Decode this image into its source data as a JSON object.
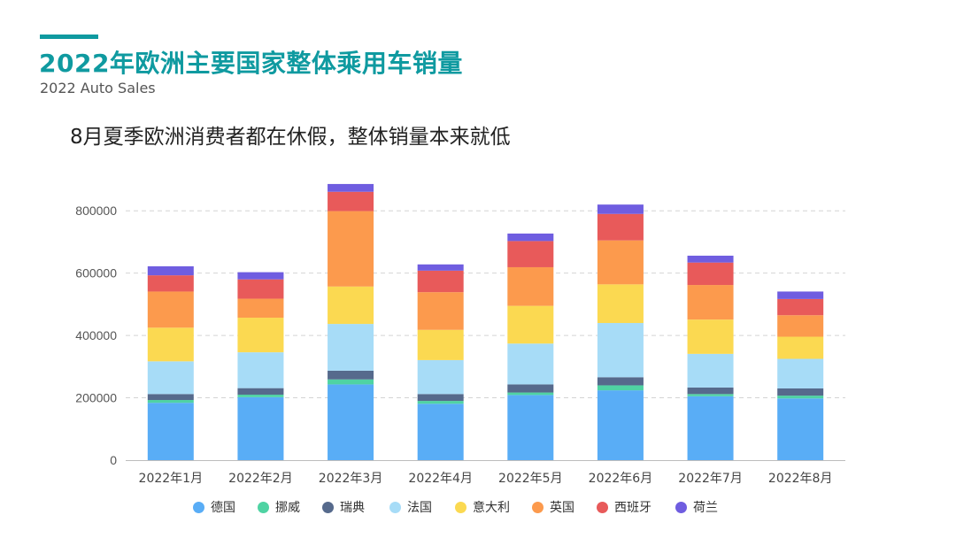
{
  "header": {
    "title": "2022年欧洲主要国家整体乘用车销量",
    "subtitle": "2022 Auto Sales",
    "headline": "8月夏季欧洲消费者都在休假，整体销量本来就低"
  },
  "chart_data": {
    "type": "bar",
    "stacked": true,
    "categories": [
      "2022年1月",
      "2022年2月",
      "2022年3月",
      "2022年4月",
      "2022年5月",
      "2022年6月",
      "2022年7月",
      "2022年8月"
    ],
    "ylim": [
      0,
      900000
    ],
    "yticks": [
      0,
      200000,
      400000,
      600000,
      800000
    ],
    "grid": true,
    "legend_position": "bottom",
    "series": [
      {
        "name": "德国",
        "color": "#59adf6",
        "values": [
          184000,
          202000,
          243000,
          181000,
          209000,
          224000,
          205000,
          198000
        ]
      },
      {
        "name": "挪威",
        "color": "#4fd3a3",
        "values": [
          9000,
          8000,
          16000,
          9000,
          8000,
          16000,
          7000,
          9000
        ]
      },
      {
        "name": "瑞典",
        "color": "#566a8c",
        "values": [
          19000,
          21000,
          28000,
          22000,
          26000,
          26000,
          21000,
          23000
        ]
      },
      {
        "name": "法国",
        "color": "#a7dcf7",
        "values": [
          105000,
          115000,
          150000,
          109000,
          131000,
          174000,
          108000,
          95000
        ]
      },
      {
        "name": "意大利",
        "color": "#fbd951",
        "values": [
          108000,
          111000,
          120000,
          97000,
          121000,
          124000,
          110000,
          71000
        ]
      },
      {
        "name": "英国",
        "color": "#fc9a4d",
        "values": [
          116000,
          61000,
          242000,
          121000,
          124000,
          141000,
          111000,
          69000
        ]
      },
      {
        "name": "西班牙",
        "color": "#e85a5a",
        "values": [
          52000,
          62000,
          62000,
          69000,
          84000,
          85000,
          72000,
          52000
        ]
      },
      {
        "name": "荷兰",
        "color": "#6f5de0",
        "values": [
          29000,
          23000,
          25000,
          20000,
          24000,
          30000,
          22000,
          24000
        ]
      }
    ]
  }
}
